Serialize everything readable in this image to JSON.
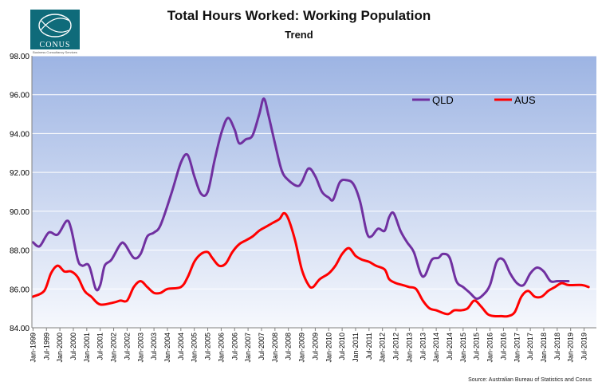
{
  "logo": {
    "name": "CONUS",
    "tagline": "Business Consultancy Services"
  },
  "colors": {
    "qld": "#7030a0",
    "aus": "#ff0000",
    "plot_top": "#9db4e3",
    "plot_bottom": "#f6f8fd"
  },
  "chart_data": {
    "type": "line",
    "title": "Total Hours Worked: Working Population",
    "subtitle": "Trend",
    "source": "Source: Australian Bureau of Statistics and Conus",
    "ylim": [
      84.0,
      98.0
    ],
    "yticks": [
      "98.00",
      "96.00",
      "94.00",
      "92.00",
      "90.00",
      "88.00",
      "86.00",
      "84.00"
    ],
    "ytick_values": [
      98,
      96,
      94,
      92,
      90,
      88,
      86,
      84
    ],
    "x_range": [
      "Jan-1999",
      "Dec-2019"
    ],
    "xticks": [
      "Jan-1999",
      "Jul-1999",
      "Jan-2000",
      "Jul-2000",
      "Jan-2001",
      "Jul-2001",
      "Jan-2002",
      "Jul-2002",
      "Jan-2003",
      "Jul-2003",
      "Jan-2004",
      "Jul-2004",
      "Jan-2005",
      "Jul-2005",
      "Jan-2006",
      "Jul-2006",
      "Jan-2007",
      "Jul-2007",
      "Jan-2008",
      "Jul-2008",
      "Jan-2009",
      "Jul-2009",
      "Jan-2010",
      "Jul-2010",
      "Jan-2011",
      "Jul-2011",
      "Jan-2012",
      "Jul-2012",
      "Jan-2013",
      "Jul-2013",
      "Jan-2014",
      "Jul-2014",
      "Jan-2015",
      "Jul-2015",
      "Jan-2016",
      "Jul-2016",
      "Jan-2017",
      "Jul-2017",
      "Jan-2018",
      "Jul-2018",
      "Jan-2019",
      "Jul-2019"
    ],
    "grid": true,
    "legend": "top-right, inside plot",
    "series": [
      {
        "name": "QLD",
        "color": "#7030a0",
        "points": [
          [
            "Jan-1999",
            88.4
          ],
          [
            "Apr-1999",
            88.2
          ],
          [
            "Aug-1999",
            88.9
          ],
          [
            "Dec-1999",
            88.8
          ],
          [
            "Apr-2000",
            89.5
          ],
          [
            "Jun-2000",
            89.1
          ],
          [
            "Sep-2000",
            87.5
          ],
          [
            "Nov-2000",
            87.2
          ],
          [
            "Feb-2001",
            87.2
          ],
          [
            "May-2001",
            86.0
          ],
          [
            "Jul-2001",
            86.2
          ],
          [
            "Sep-2001",
            87.2
          ],
          [
            "Dec-2001",
            87.5
          ],
          [
            "Apr-2002",
            88.3
          ],
          [
            "Jun-2002",
            88.3
          ],
          [
            "Oct-2002",
            87.6
          ],
          [
            "Jan-2003",
            87.8
          ],
          [
            "Apr-2003",
            88.7
          ],
          [
            "Jul-2003",
            88.9
          ],
          [
            "Oct-2003",
            89.3
          ],
          [
            "Mar-2004",
            91.0
          ],
          [
            "Jul-2004",
            92.5
          ],
          [
            "Oct-2004",
            92.9
          ],
          [
            "Jan-2005",
            91.8
          ],
          [
            "Apr-2005",
            90.9
          ],
          [
            "Jul-2005",
            91.0
          ],
          [
            "Oct-2005",
            92.6
          ],
          [
            "Jan-2006",
            94.0
          ],
          [
            "Apr-2006",
            94.8
          ],
          [
            "Jul-2006",
            94.2
          ],
          [
            "Sep-2006",
            93.5
          ],
          [
            "Dec-2006",
            93.7
          ],
          [
            "Mar-2007",
            93.9
          ],
          [
            "Jun-2007",
            95.0
          ],
          [
            "Aug-2007",
            95.8
          ],
          [
            "Oct-2007",
            95.0
          ],
          [
            "Jan-2008",
            93.5
          ],
          [
            "Apr-2008",
            92.1
          ],
          [
            "Jul-2008",
            91.6
          ],
          [
            "Nov-2008",
            91.3
          ],
          [
            "Jan-2009",
            91.5
          ],
          [
            "Apr-2009",
            92.2
          ],
          [
            "Jul-2009",
            91.8
          ],
          [
            "Oct-2009",
            91.0
          ],
          [
            "Jan-2010",
            90.7
          ],
          [
            "Mar-2010",
            90.6
          ],
          [
            "Jun-2010",
            91.5
          ],
          [
            "Sep-2010",
            91.6
          ],
          [
            "Dec-2010",
            91.4
          ],
          [
            "Mar-2011",
            90.5
          ],
          [
            "Jun-2011",
            88.9
          ],
          [
            "Aug-2011",
            88.7
          ],
          [
            "Nov-2011",
            89.1
          ],
          [
            "Feb-2012",
            89.0
          ],
          [
            "Apr-2012",
            89.7
          ],
          [
            "Jun-2012",
            89.9
          ],
          [
            "Sep-2012",
            89.0
          ],
          [
            "Dec-2012",
            88.4
          ],
          [
            "Mar-2013",
            87.9
          ],
          [
            "Jun-2013",
            86.8
          ],
          [
            "Aug-2013",
            86.7
          ],
          [
            "Nov-2013",
            87.5
          ],
          [
            "Feb-2014",
            87.6
          ],
          [
            "Apr-2014",
            87.8
          ],
          [
            "Jul-2014",
            87.6
          ],
          [
            "Oct-2014",
            86.4
          ],
          [
            "Jan-2015",
            86.1
          ],
          [
            "Apr-2015",
            85.8
          ],
          [
            "Jul-2015",
            85.5
          ],
          [
            "Oct-2015",
            85.7
          ],
          [
            "Jan-2016",
            86.2
          ],
          [
            "Apr-2016",
            87.4
          ],
          [
            "Jul-2016",
            87.5
          ],
          [
            "Oct-2016",
            86.8
          ],
          [
            "Jan-2017",
            86.3
          ],
          [
            "Apr-2017",
            86.2
          ],
          [
            "Jul-2017",
            86.8
          ],
          [
            "Oct-2017",
            87.1
          ],
          [
            "Jan-2018",
            86.9
          ],
          [
            "Apr-2018",
            86.4
          ],
          [
            "Jul-2018",
            86.4
          ],
          [
            "Oct-2018",
            86.4
          ],
          [
            "Dec-2018",
            86.4
          ]
        ]
      },
      {
        "name": "AUS",
        "color": "#ff0000",
        "points": [
          [
            "Jan-1999",
            85.6
          ],
          [
            "Jun-1999",
            85.9
          ],
          [
            "Sep-1999",
            86.8
          ],
          [
            "Dec-1999",
            87.2
          ],
          [
            "Mar-2000",
            86.9
          ],
          [
            "Jun-2000",
            86.9
          ],
          [
            "Sep-2000",
            86.6
          ],
          [
            "Dec-2000",
            85.9
          ],
          [
            "Mar-2001",
            85.6
          ],
          [
            "Jul-2001",
            85.2
          ],
          [
            "Jan-2002",
            85.3
          ],
          [
            "Apr-2002",
            85.4
          ],
          [
            "Jul-2002",
            85.4
          ],
          [
            "Oct-2002",
            86.1
          ],
          [
            "Jan-2003",
            86.4
          ],
          [
            "Apr-2003",
            86.1
          ],
          [
            "Jul-2003",
            85.8
          ],
          [
            "Oct-2003",
            85.8
          ],
          [
            "Jan-2004",
            86.0
          ],
          [
            "Jul-2004",
            86.1
          ],
          [
            "Oct-2004",
            86.6
          ],
          [
            "Jan-2005",
            87.4
          ],
          [
            "Apr-2005",
            87.8
          ],
          [
            "Jul-2005",
            87.9
          ],
          [
            "Sep-2005",
            87.6
          ],
          [
            "Dec-2005",
            87.2
          ],
          [
            "Mar-2006",
            87.3
          ],
          [
            "Jun-2006",
            87.9
          ],
          [
            "Sep-2006",
            88.3
          ],
          [
            "Dec-2006",
            88.5
          ],
          [
            "Mar-2007",
            88.7
          ],
          [
            "Jun-2007",
            89.0
          ],
          [
            "Sep-2007",
            89.2
          ],
          [
            "Dec-2007",
            89.4
          ],
          [
            "Mar-2008",
            89.6
          ],
          [
            "May-2008",
            89.9
          ],
          [
            "Jul-2008",
            89.6
          ],
          [
            "Oct-2008",
            88.5
          ],
          [
            "Jan-2009",
            87.0
          ],
          [
            "Apr-2009",
            86.2
          ],
          [
            "Jun-2009",
            86.1
          ],
          [
            "Sep-2009",
            86.5
          ],
          [
            "Jan-2010",
            86.8
          ],
          [
            "Apr-2010",
            87.2
          ],
          [
            "Jul-2010",
            87.8
          ],
          [
            "Oct-2010",
            88.1
          ],
          [
            "Jan-2011",
            87.7
          ],
          [
            "Apr-2011",
            87.5
          ],
          [
            "Jul-2011",
            87.4
          ],
          [
            "Oct-2011",
            87.2
          ],
          [
            "Feb-2012",
            87.0
          ],
          [
            "Apr-2012",
            86.5
          ],
          [
            "Jul-2012",
            86.3
          ],
          [
            "Oct-2012",
            86.2
          ],
          [
            "Jan-2013",
            86.1
          ],
          [
            "Apr-2013",
            86.0
          ],
          [
            "Jul-2013",
            85.4
          ],
          [
            "Oct-2013",
            85.0
          ],
          [
            "Jan-2014",
            84.9
          ],
          [
            "Jun-2014",
            84.7
          ],
          [
            "Sep-2014",
            84.9
          ],
          [
            "Dec-2014",
            84.9
          ],
          [
            "Mar-2015",
            85.0
          ],
          [
            "Jun-2015",
            85.4
          ],
          [
            "Sep-2015",
            85.1
          ],
          [
            "Dec-2015",
            84.7
          ],
          [
            "Mar-2016",
            84.6
          ],
          [
            "Jun-2016",
            84.6
          ],
          [
            "Sep-2016",
            84.6
          ],
          [
            "Dec-2016",
            84.8
          ],
          [
            "Mar-2017",
            85.6
          ],
          [
            "Jun-2017",
            85.9
          ],
          [
            "Sep-2017",
            85.6
          ],
          [
            "Dec-2017",
            85.6
          ],
          [
            "Mar-2018",
            85.9
          ],
          [
            "Jun-2018",
            86.1
          ],
          [
            "Sep-2018",
            86.3
          ],
          [
            "Dec-2018",
            86.2
          ],
          [
            "Jun-2019",
            86.2
          ],
          [
            "Sep-2019",
            86.1
          ]
        ]
      }
    ]
  }
}
